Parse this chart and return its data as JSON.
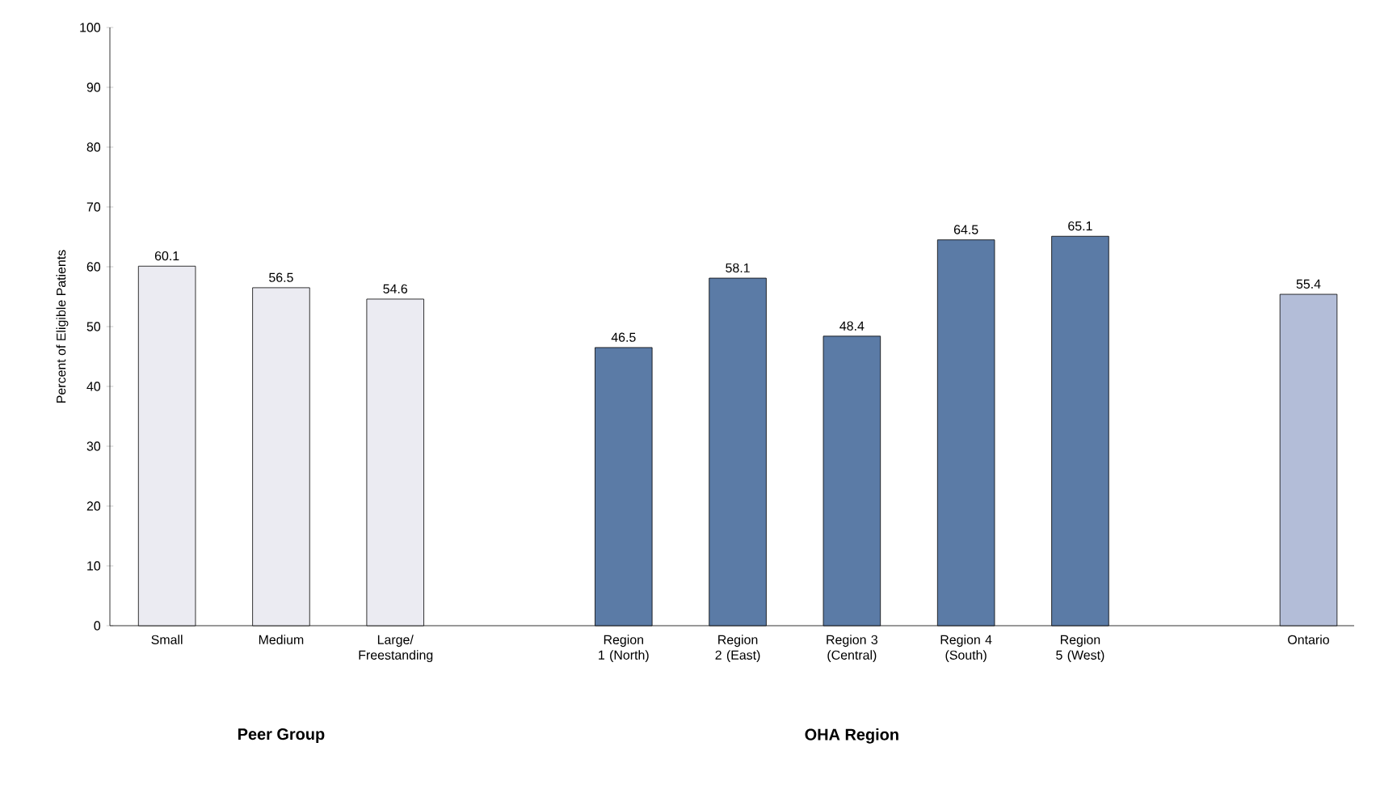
{
  "chart_data": {
    "type": "bar",
    "ylabel": "Percent of Eligible Patients",
    "categories": [
      "Small",
      "Medium",
      "Large/ Freestanding",
      null,
      "Region 1 (North)",
      "Region 2 (East)",
      "Region 3 (Central)",
      "Region 4 (South)",
      "Region 5 (West)",
      null,
      "Ontario"
    ],
    "values": [
      60.1,
      56.5,
      54.6,
      null,
      46.5,
      58.1,
      48.4,
      64.5,
      65.1,
      null,
      55.4
    ],
    "colors": [
      "#ebebf2",
      "#ebebf2",
      "#ebebf2",
      null,
      "#5b7ba6",
      "#5b7ba6",
      "#5b7ba6",
      "#5b7ba6",
      "#5b7ba6",
      null,
      "#b3bdd8"
    ],
    "ylim": [
      0,
      100
    ],
    "yticks": [
      0,
      10,
      20,
      30,
      40,
      50,
      60,
      70,
      80,
      90,
      100
    ],
    "data_labels": true,
    "grid": false,
    "annotations": [
      "Peer Group",
      "OHA Region"
    ]
  }
}
